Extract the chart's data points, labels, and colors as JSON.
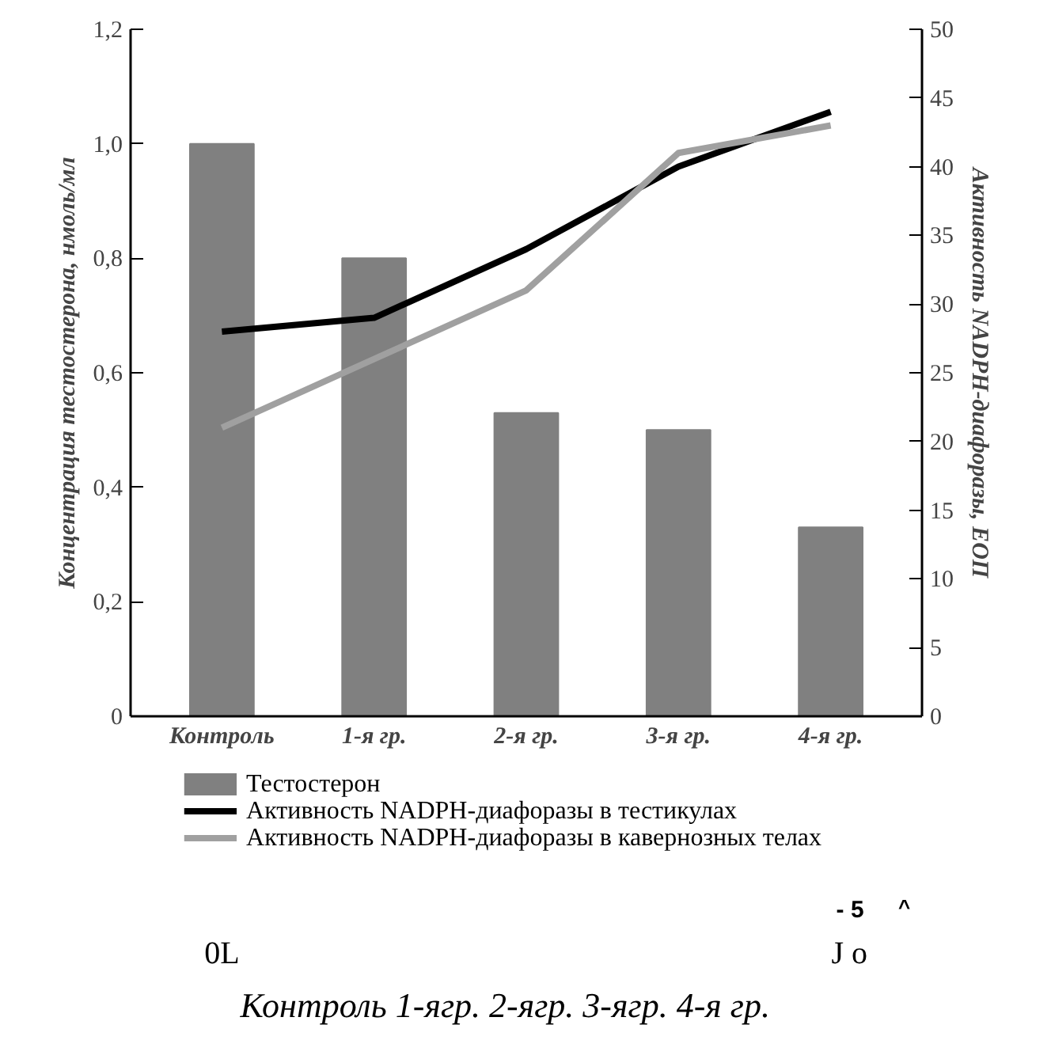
{
  "chart_data": {
    "type": "bar",
    "categories": [
      "Контроль",
      "1-я гр.",
      "2-я гр.",
      "3-я гр.",
      "4-я гр."
    ],
    "ylabel": "Концентрация тестостерона, нмоль/мл",
    "y2label": "Активность NADPH-диафоразы, ЕОП",
    "ylim": [
      0,
      1.2
    ],
    "yticks": [
      0,
      {
        "value": 0.2,
        "label": "0,2"
      },
      {
        "value": 0.4,
        "label": "0,4"
      },
      {
        "value": 0.6,
        "label": "0,6"
      },
      {
        "value": 0.8,
        "label": "0,8"
      },
      {
        "value": 1.0,
        "label": "1,0"
      },
      {
        "value": 1.2,
        "label": "1,2"
      }
    ],
    "y2lim": [
      0,
      50
    ],
    "y2ticks": [
      0,
      5,
      10,
      15,
      20,
      25,
      30,
      35,
      40,
      45,
      50
    ],
    "series": [
      {
        "name": "Тестостерон",
        "color": "#808080",
        "values": [
          1.0,
          0.8,
          0.53,
          0.5,
          0.33
        ]
      },
      {
        "name": "Активность NADPH-диафоразы в тестикулах",
        "type": "line",
        "axis": "y2",
        "color": "#000000",
        "values": [
          28,
          29,
          34,
          40,
          44
        ]
      },
      {
        "name": "Активность NADPH-диафоразы в кавернозных телах",
        "type": "line",
        "axis": "y2",
        "color": "#a0a0a0",
        "values": [
          21,
          26,
          31,
          41,
          43
        ]
      }
    ],
    "legend": "bottom",
    "grid": false,
    "annotations": [
      "- 5",
      "^",
      "0L",
      "J o",
      "Контроль 1-ягр. 2-ягр. 3-ягр. 4-я гр."
    ]
  }
}
